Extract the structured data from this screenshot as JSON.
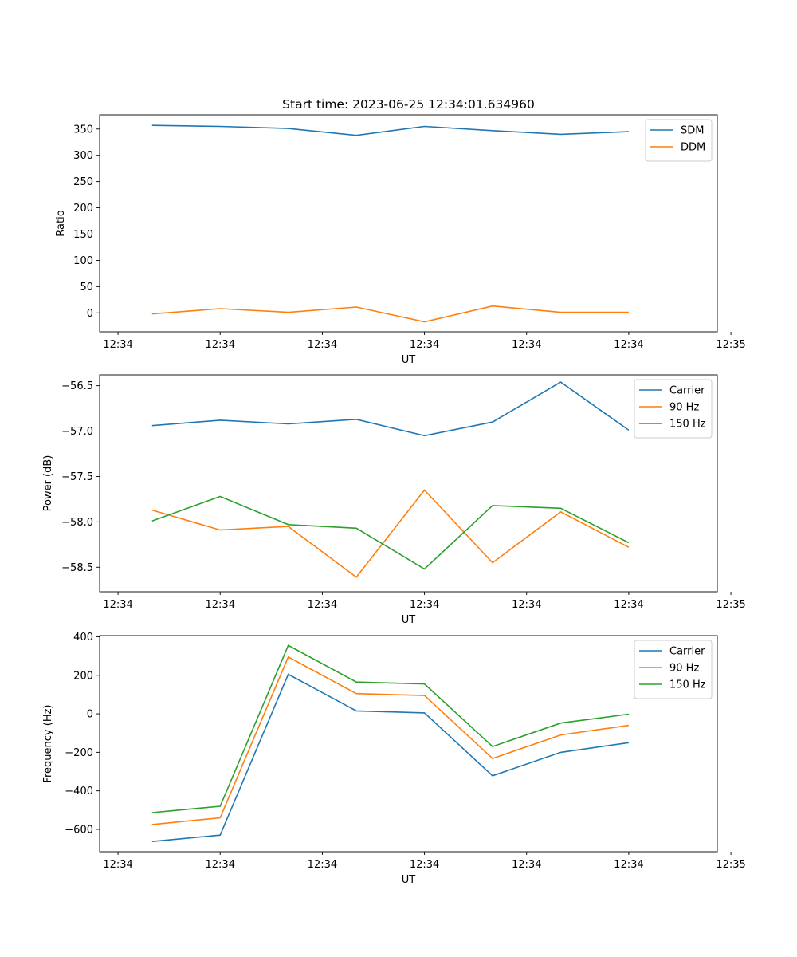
{
  "chart_data": [
    {
      "type": "line",
      "title": "Start time: 2023-06-25 12:34:01.634960",
      "xlabel": "UT",
      "ylabel": "Ratio",
      "x": [
        1,
        2,
        3,
        4,
        5,
        6,
        7,
        8
      ],
      "xlim": [
        0.23,
        9.3
      ],
      "x_ticks": [
        0.5,
        2,
        3.5,
        5,
        6.5,
        8,
        9.5
      ],
      "x_tick_labels": [
        "12:34",
        "12:34",
        "12:34",
        "12:34",
        "12:34",
        "12:34",
        "12:35"
      ],
      "ylim": [
        -36,
        377
      ],
      "y_ticks": [
        0,
        50,
        100,
        150,
        200,
        250,
        300,
        350
      ],
      "y_tick_labels": [
        "0",
        "50",
        "100",
        "150",
        "200",
        "250",
        "300",
        "350"
      ],
      "legend": "top-right",
      "series": [
        {
          "name": "SDM",
          "color": "#1f77b4",
          "values": [
            357,
            355,
            351,
            338,
            355,
            347,
            340,
            345
          ]
        },
        {
          "name": "DDM",
          "color": "#ff7f0e",
          "values": [
            -2,
            8,
            1,
            11,
            -17,
            13,
            1,
            1
          ]
        }
      ]
    },
    {
      "type": "line",
      "title": "",
      "xlabel": "UT",
      "ylabel": "Power (dB)",
      "x": [
        1,
        2,
        3,
        4,
        5,
        6,
        7,
        8
      ],
      "xlim": [
        0.23,
        9.3
      ],
      "x_ticks": [
        0.5,
        2,
        3.5,
        5,
        6.5,
        8,
        9.5
      ],
      "x_tick_labels": [
        "12:34",
        "12:34",
        "12:34",
        "12:34",
        "12:34",
        "12:34",
        "12:35"
      ],
      "ylim": [
        -58.77,
        -56.38
      ],
      "y_ticks": [
        -58.5,
        -58.0,
        -57.5,
        -57.0,
        -56.5
      ],
      "y_tick_labels": [
        "−58.5",
        "−58.0",
        "−57.5",
        "−57.0",
        "−56.5"
      ],
      "legend": "top-right",
      "series": [
        {
          "name": "Carrier",
          "color": "#1f77b4",
          "values": [
            -56.94,
            -56.88,
            -56.92,
            -56.87,
            -57.05,
            -56.9,
            -56.46,
            -56.99
          ]
        },
        {
          "name": "90 Hz",
          "color": "#ff7f0e",
          "values": [
            -57.87,
            -58.09,
            -58.05,
            -58.61,
            -57.65,
            -58.45,
            -57.89,
            -58.28
          ]
        },
        {
          "name": "150 Hz",
          "color": "#2ca02c",
          "values": [
            -57.99,
            -57.72,
            -58.03,
            -58.07,
            -58.52,
            -57.82,
            -57.85,
            -58.23
          ]
        }
      ]
    },
    {
      "type": "line",
      "title": "",
      "xlabel": "UT",
      "ylabel": "Frequency (Hz)",
      "x": [
        1,
        2,
        3,
        4,
        5,
        6,
        7,
        8
      ],
      "xlim": [
        0.23,
        9.3
      ],
      "x_ticks": [
        0.5,
        2,
        3.5,
        5,
        6.5,
        8,
        9.5
      ],
      "x_tick_labels": [
        "12:34",
        "12:34",
        "12:34",
        "12:34",
        "12:34",
        "12:34",
        "12:35"
      ],
      "ylim": [
        -716,
        406
      ],
      "y_ticks": [
        -600,
        -400,
        -200,
        0,
        200,
        400
      ],
      "y_tick_labels": [
        "−600",
        "−400",
        "−200",
        "0",
        "200",
        "400"
      ],
      "legend": "top-right",
      "series": [
        {
          "name": "Carrier",
          "color": "#1f77b4",
          "values": [
            -663,
            -630,
            205,
            15,
            5,
            -322,
            -200,
            -150
          ]
        },
        {
          "name": "90 Hz",
          "color": "#ff7f0e",
          "values": [
            -575,
            -540,
            295,
            105,
            95,
            -232,
            -110,
            -60
          ]
        },
        {
          "name": "150 Hz",
          "color": "#2ca02c",
          "values": [
            -513,
            -480,
            355,
            165,
            155,
            -170,
            -48,
            -2
          ]
        }
      ]
    }
  ]
}
